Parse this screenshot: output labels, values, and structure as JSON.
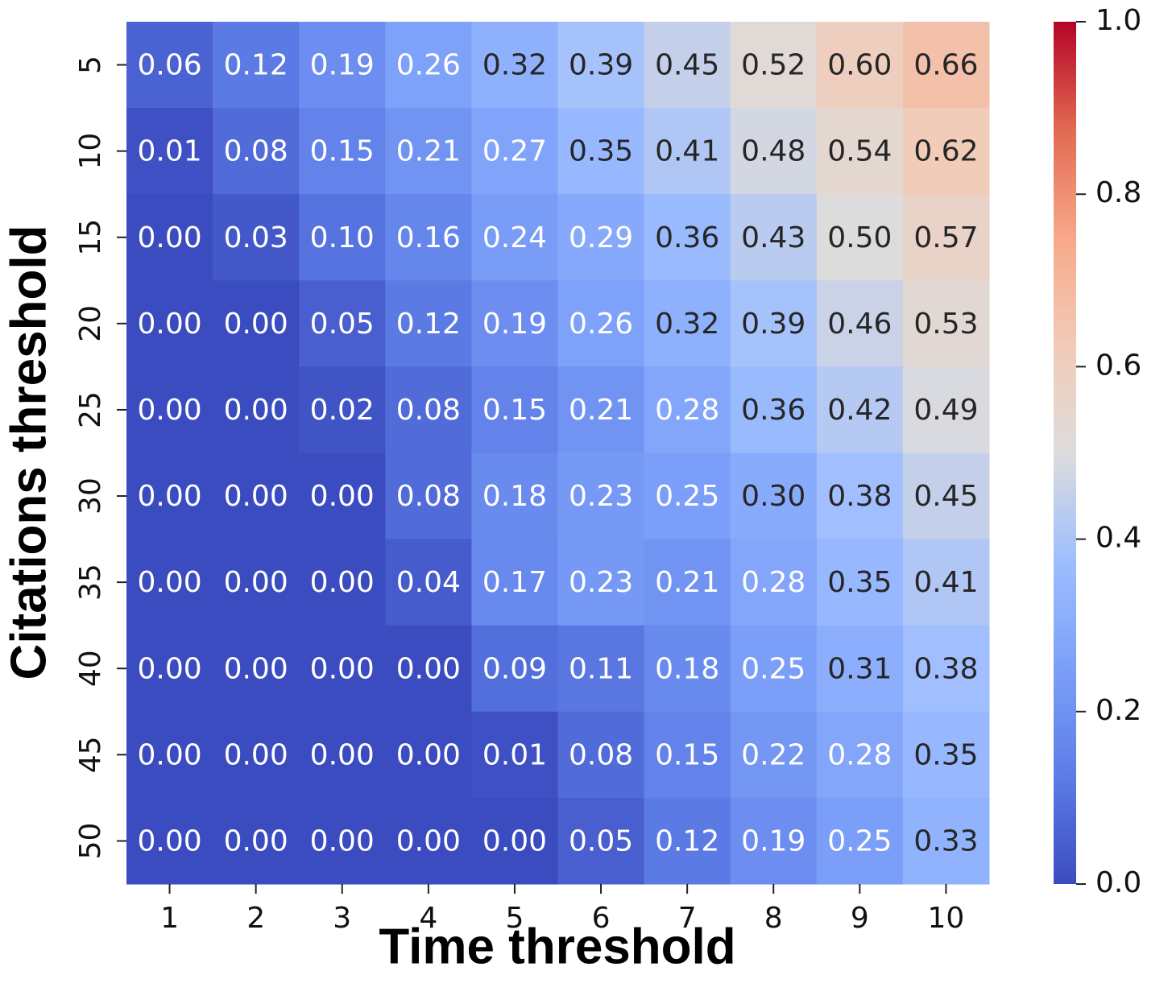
{
  "chart_data": {
    "type": "heatmap",
    "x_label": "Time threshold",
    "y_label": "Citations threshold",
    "x_categories": [
      "1",
      "2",
      "3",
      "4",
      "5",
      "6",
      "7",
      "8",
      "9",
      "10"
    ],
    "y_categories": [
      "5",
      "10",
      "15",
      "20",
      "25",
      "30",
      "35",
      "40",
      "45",
      "50"
    ],
    "values": [
      [
        0.06,
        0.12,
        0.19,
        0.26,
        0.32,
        0.39,
        0.45,
        0.52,
        0.6,
        0.66
      ],
      [
        0.01,
        0.08,
        0.15,
        0.21,
        0.27,
        0.35,
        0.41,
        0.48,
        0.54,
        0.62
      ],
      [
        0,
        0.03,
        0.1,
        0.16,
        0.24,
        0.29,
        0.36,
        0.43,
        0.5,
        0.57
      ],
      [
        0,
        0,
        0.05,
        0.12,
        0.19,
        0.26,
        0.32,
        0.39,
        0.46,
        0.53
      ],
      [
        0,
        0,
        0.02,
        0.08,
        0.15,
        0.21,
        0.28,
        0.36,
        0.42,
        0.49
      ],
      [
        0,
        0,
        0,
        0.08,
        0.18,
        0.23,
        0.25,
        0.3,
        0.38,
        0.45
      ],
      [
        0,
        0,
        0,
        0.04,
        0.17,
        0.23,
        0.21,
        0.28,
        0.35,
        0.41
      ],
      [
        0,
        0,
        0,
        0,
        0.09,
        0.11,
        0.18,
        0.25,
        0.31,
        0.38
      ],
      [
        0,
        0,
        0,
        0,
        0.01,
        0.08,
        0.15,
        0.22,
        0.28,
        0.35
      ],
      [
        0,
        0,
        0,
        0,
        0,
        0.05,
        0.12,
        0.19,
        0.25,
        0.33
      ]
    ],
    "value_labels": [
      [
        "0.06",
        "0.12",
        "0.19",
        "0.26",
        "0.32",
        "0.39",
        "0.45",
        "0.52",
        "0.60",
        "0.66"
      ],
      [
        "0.01",
        "0.08",
        "0.15",
        "0.21",
        "0.27",
        "0.35",
        "0.41",
        "0.48",
        "0.54",
        "0.62"
      ],
      [
        "0.00",
        "0.03",
        "0.10",
        "0.16",
        "0.24",
        "0.29",
        "0.36",
        "0.43",
        "0.50",
        "0.57"
      ],
      [
        "0.00",
        "0.00",
        "0.05",
        "0.12",
        "0.19",
        "0.26",
        "0.32",
        "0.39",
        "0.46",
        "0.53"
      ],
      [
        "0.00",
        "0.00",
        "0.02",
        "0.08",
        "0.15",
        "0.21",
        "0.28",
        "0.36",
        "0.42",
        "0.49"
      ],
      [
        "0.00",
        "0.00",
        "0.00",
        "0.08",
        "0.18",
        "0.23",
        "0.25",
        "0.30",
        "0.38",
        "0.45"
      ],
      [
        "0.00",
        "0.00",
        "0.00",
        "0.04",
        "0.17",
        "0.23",
        "0.21",
        "0.28",
        "0.35",
        "0.41"
      ],
      [
        "0.00",
        "0.00",
        "0.00",
        "0.00",
        "0.09",
        "0.11",
        "0.18",
        "0.25",
        "0.31",
        "0.38"
      ],
      [
        "0.00",
        "0.00",
        "0.00",
        "0.00",
        "0.01",
        "0.08",
        "0.15",
        "0.22",
        "0.28",
        "0.35"
      ],
      [
        "0.00",
        "0.00",
        "0.00",
        "0.00",
        "0.00",
        "0.05",
        "0.12",
        "0.19",
        "0.25",
        "0.33"
      ]
    ],
    "colormap": "coolwarm",
    "zlim": [
      0,
      1
    ],
    "zticks": [
      {
        "value": 0,
        "label": "0.0"
      },
      0.2,
      0.4,
      0.6,
      0.8,
      {
        "value": 1,
        "label": "1.0"
      }
    ]
  }
}
